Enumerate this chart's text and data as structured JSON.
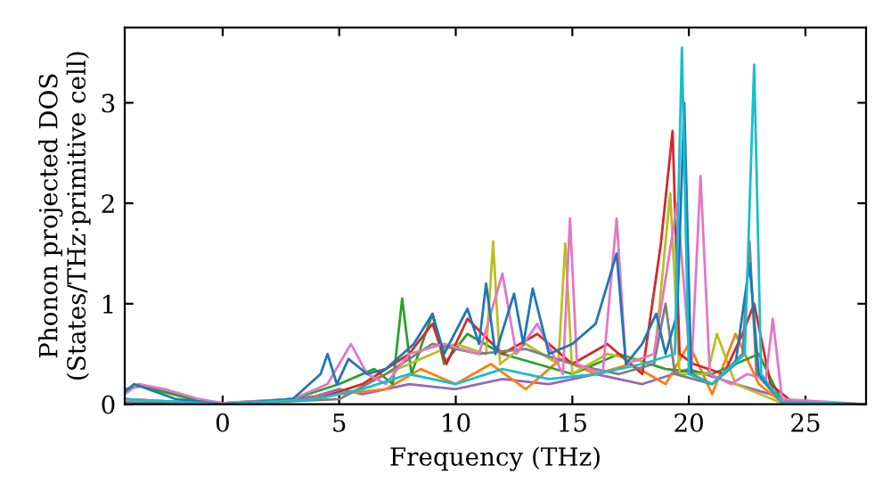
{
  "chart_data": {
    "type": "line",
    "xlabel": "Frequency (THz)",
    "ylabel": "Phonon projected DOS\n(States/THz·primitive cell)",
    "xlim": [
      -4.2,
      27.6
    ],
    "ylim": [
      0,
      3.75
    ],
    "xticks": [
      0,
      5,
      10,
      15,
      20,
      25
    ],
    "yticks": [
      0,
      1,
      2,
      3
    ],
    "grid": false,
    "legend": false,
    "marker": "none",
    "line_style": "solid",
    "series": [
      {
        "color": "#9467bd",
        "x": [
          -4.2,
          -3.6,
          -3.0,
          -2.0,
          -1.0,
          0.0,
          2.0,
          4.0,
          5.0,
          6.0,
          8.0,
          10.0,
          12.0,
          14.0,
          16.0,
          18.0,
          20.0,
          22.0,
          23.5,
          24.5,
          27.6
        ],
        "values": [
          0.12,
          0.2,
          0.15,
          0.1,
          0.04,
          0.01,
          0.03,
          0.08,
          0.15,
          0.1,
          0.2,
          0.15,
          0.25,
          0.2,
          0.3,
          0.2,
          0.35,
          0.2,
          0.1,
          0.01,
          0.0
        ]
      },
      {
        "color": "#ff7f0e",
        "x": [
          0.0,
          3.0,
          5.0,
          7.0,
          8.5,
          10.0,
          11.5,
          13.0,
          14.5,
          16.0,
          17.5,
          19.0,
          20.0,
          21.0,
          22.0,
          23.0,
          24.0,
          27.6
        ],
        "values": [
          0.0,
          0.03,
          0.1,
          0.15,
          0.35,
          0.2,
          0.4,
          0.15,
          0.45,
          0.3,
          0.4,
          0.2,
          0.6,
          0.1,
          0.7,
          0.2,
          0.02,
          0.0
        ]
      },
      {
        "color": "#2ca02c",
        "x": [
          -4.2,
          -3.5,
          -1.0,
          0.0,
          3.0,
          5.0,
          6.5,
          7.3,
          7.7,
          8.1,
          9.0,
          9.5,
          10.5,
          12.0,
          13.5,
          15.0,
          17.0,
          19.0,
          21.0,
          23.0,
          24.0,
          27.6
        ],
        "values": [
          0.15,
          0.18,
          0.03,
          0.01,
          0.05,
          0.2,
          0.35,
          0.2,
          1.05,
          0.3,
          0.9,
          0.4,
          0.7,
          0.5,
          0.4,
          0.3,
          0.5,
          0.35,
          0.3,
          0.5,
          0.02,
          0.0
        ]
      },
      {
        "color": "#bcbd22",
        "x": [
          4.0,
          6.0,
          8.0,
          10.0,
          11.3,
          11.6,
          11.9,
          13.0,
          14.4,
          14.7,
          15.0,
          16.5,
          18.5,
          19.2,
          19.6,
          20.8,
          21.2,
          22.0,
          24.0,
          27.6
        ],
        "values": [
          0.05,
          0.2,
          0.4,
          0.6,
          0.5,
          1.62,
          0.4,
          0.6,
          0.4,
          1.6,
          0.3,
          0.5,
          0.4,
          2.1,
          0.3,
          0.3,
          0.7,
          0.2,
          0.01,
          0.0
        ]
      },
      {
        "color": "#d62728",
        "x": [
          -4.2,
          0.0,
          4.0,
          6.0,
          8.0,
          9.0,
          9.6,
          10.5,
          12.0,
          13.5,
          15.0,
          16.5,
          18.0,
          18.8,
          19.3,
          19.6,
          20.2,
          21.5,
          22.3,
          22.8,
          23.5,
          24.5,
          27.6
        ],
        "values": [
          0.05,
          0.0,
          0.05,
          0.2,
          0.5,
          0.8,
          0.4,
          0.85,
          0.5,
          0.7,
          0.4,
          0.6,
          0.3,
          1.6,
          2.72,
          0.5,
          0.4,
          0.3,
          0.7,
          1.0,
          0.2,
          0.01,
          0.0
        ]
      },
      {
        "color": "#7f7f7f",
        "x": [
          -4.2,
          0.0,
          5.0,
          7.0,
          9.0,
          11.0,
          13.0,
          15.0,
          17.0,
          18.5,
          19.0,
          19.4,
          21.0,
          22.3,
          22.6,
          22.9,
          24.0,
          27.6
        ],
        "values": [
          0.02,
          0.0,
          0.05,
          0.3,
          0.6,
          0.5,
          0.55,
          0.4,
          0.3,
          0.4,
          1.0,
          0.3,
          0.2,
          0.5,
          1.62,
          0.3,
          0.02,
          0.0
        ]
      },
      {
        "color": "#e377c2",
        "x": [
          -4.2,
          -3.6,
          -2.5,
          -1.0,
          0.0,
          3.0,
          4.5,
          5.5,
          6.2,
          7.0,
          8.0,
          9.5,
          11.0,
          12.0,
          12.6,
          13.5,
          14.6,
          14.9,
          15.2,
          16.3,
          16.9,
          17.3,
          18.5,
          19.5,
          20.1,
          20.5,
          20.9,
          21.8,
          22.5,
          23.3,
          23.6,
          24.0,
          27.6
        ],
        "values": [
          0.1,
          0.2,
          0.15,
          0.05,
          0.01,
          0.05,
          0.2,
          0.6,
          0.3,
          0.2,
          0.5,
          0.6,
          0.5,
          1.3,
          0.5,
          0.8,
          0.3,
          1.85,
          0.4,
          0.3,
          1.85,
          0.4,
          0.5,
          2.0,
          0.3,
          2.27,
          0.3,
          0.2,
          0.3,
          0.25,
          0.85,
          0.05,
          0.0
        ]
      },
      {
        "color": "#1f77b4",
        "x": [
          -4.2,
          -3.8,
          -2.0,
          0.0,
          3.0,
          4.2,
          4.5,
          4.9,
          5.4,
          6.2,
          7.0,
          8.2,
          9.0,
          9.5,
          10.5,
          11.0,
          11.3,
          11.7,
          12.5,
          12.9,
          13.3,
          14.0,
          15.0,
          16.0,
          16.9,
          17.3,
          18.0,
          18.6,
          19.0,
          19.5,
          19.8,
          20.1,
          21.0,
          22.0,
          22.6,
          23.0,
          24.0,
          27.6
        ],
        "values": [
          0.12,
          0.2,
          0.05,
          0.0,
          0.05,
          0.3,
          0.5,
          0.2,
          0.45,
          0.3,
          0.35,
          0.6,
          0.9,
          0.5,
          0.95,
          0.6,
          1.2,
          0.5,
          1.1,
          0.6,
          1.15,
          0.5,
          0.6,
          0.8,
          1.5,
          0.4,
          0.6,
          0.9,
          0.5,
          0.9,
          3.0,
          0.3,
          0.2,
          0.4,
          1.4,
          0.3,
          0.02,
          0.0
        ]
      },
      {
        "color": "#17becf",
        "x": [
          -4.2,
          0.0,
          4.0,
          6.0,
          8.0,
          10.0,
          12.0,
          14.0,
          16.0,
          18.0,
          19.4,
          19.7,
          20.0,
          21.0,
          22.4,
          22.8,
          23.1,
          24.0,
          27.6
        ],
        "values": [
          0.05,
          0.0,
          0.05,
          0.15,
          0.3,
          0.2,
          0.35,
          0.25,
          0.3,
          0.4,
          0.5,
          3.55,
          0.3,
          0.2,
          0.5,
          3.38,
          0.3,
          0.02,
          0.0
        ]
      }
    ]
  }
}
